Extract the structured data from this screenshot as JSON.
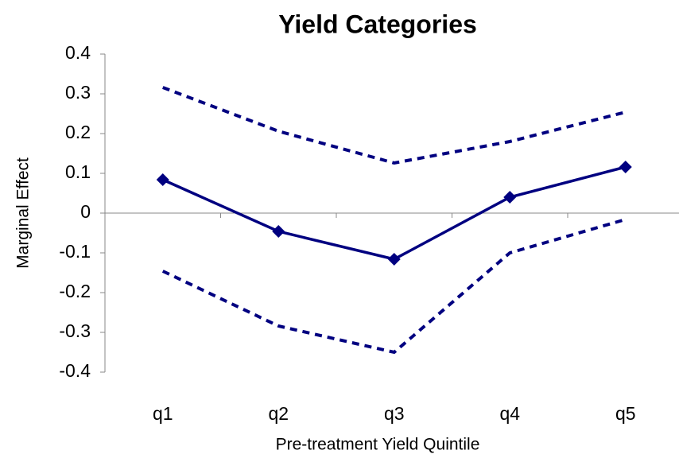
{
  "chart_data": {
    "type": "line",
    "title": "Yield Categories",
    "x_label": "Pre-treatment Yield Quintile",
    "y_label": "Marginal Effect",
    "categories": [
      "q1",
      "q2",
      "q3",
      "q4",
      "q5"
    ],
    "series": [
      {
        "color": "#000080",
        "style": "solid",
        "marker": "diamond",
        "values": [
          0.084,
          -0.046,
          -0.116,
          0.04,
          0.116
        ]
      },
      {
        "color": "#000080",
        "style": "dotted",
        "values": [
          0.316,
          0.206,
          0.126,
          0.18,
          0.254
        ]
      },
      {
        "color": "#000080",
        "style": "dotted",
        "values": [
          -0.146,
          -0.284,
          -0.35,
          -0.1,
          -0.016
        ]
      }
    ],
    "ylim": [
      -0.4,
      0.4
    ],
    "yticks": [
      -0.4,
      -0.3,
      -0.2,
      -0.1,
      0,
      0.1,
      0.2,
      0.3,
      0.4
    ],
    "grid": false
  }
}
